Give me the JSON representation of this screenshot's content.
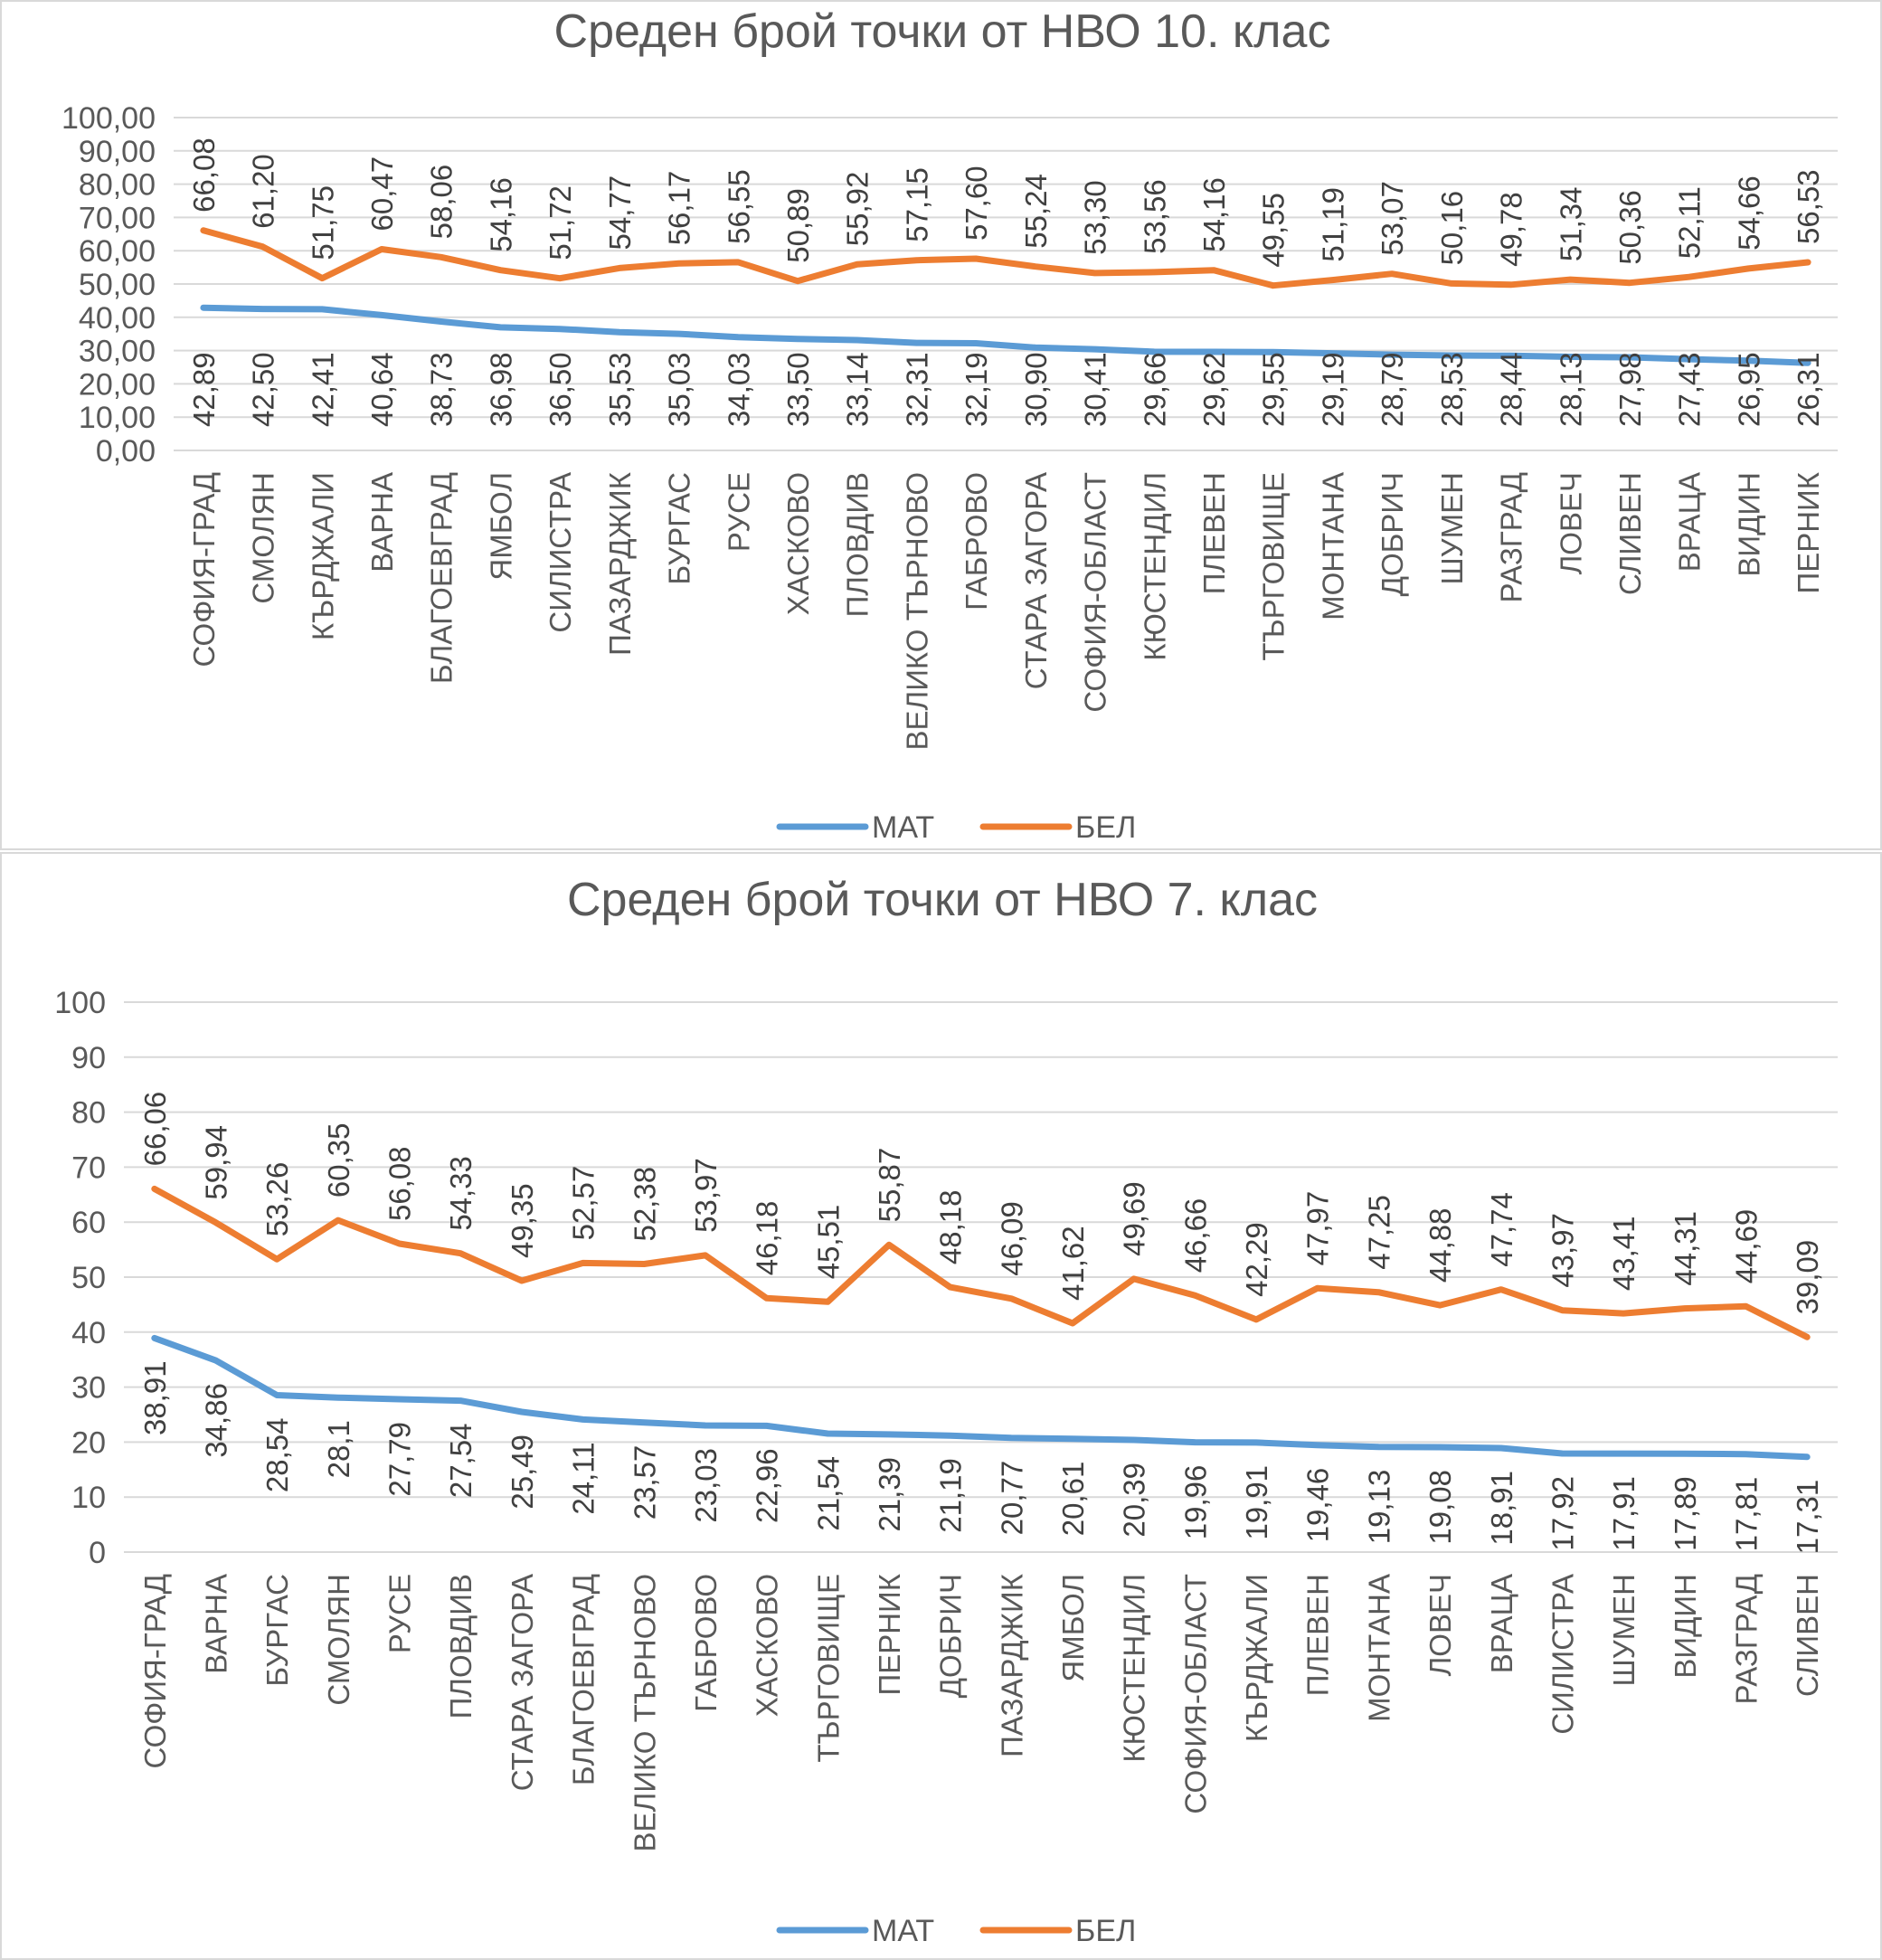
{
  "chart_data": [
    {
      "type": "line",
      "title": "Среден брой точки от НВО 10. клас",
      "categories": [
        "СОФИЯ-ГРАД",
        "СМОЛЯН",
        "КЪРДЖАЛИ",
        "ВАРНА",
        "БЛАГОЕВГРАД",
        "ЯМБОЛ",
        "СИЛИСТРА",
        "ПАЗАРДЖИК",
        "БУРГАС",
        "РУСЕ",
        "ХАСКОВО",
        "ПЛОВДИВ",
        "ВЕЛИКО ТЪРНОВО",
        "ГАБРОВО",
        "СТАРА ЗАГОРА",
        "СОФИЯ-ОБЛАСТ",
        "КЮСТЕНДИЛ",
        "ПЛЕВЕН",
        "ТЪРГОВИЩЕ",
        "МОНТАНА",
        "ДОБРИЧ",
        "ШУМЕН",
        "РАЗГРАД",
        "ЛОВЕЧ",
        "СЛИВЕН",
        "ВРАЦА",
        "ВИДИН",
        "ПЕРНИК"
      ],
      "series": [
        {
          "name": "МАТ",
          "color": "#5b9bd5",
          "values": [
            42.89,
            42.5,
            42.41,
            40.64,
            38.73,
            36.98,
            36.5,
            35.53,
            35.03,
            34.03,
            33.5,
            33.14,
            32.31,
            32.19,
            30.9,
            30.41,
            29.66,
            29.62,
            29.55,
            29.19,
            28.79,
            28.53,
            28.44,
            28.13,
            27.98,
            27.43,
            26.95,
            26.31
          ],
          "labels": [
            "42,89",
            "42,50",
            "42,41",
            "40,64",
            "38,73",
            "36,98",
            "36,50",
            "35,53",
            "35,03",
            "34,03",
            "33,50",
            "33,14",
            "32,31",
            "32,19",
            "30,90",
            "30,41",
            "29,66",
            "29,62",
            "29,55",
            "29,19",
            "28,79",
            "28,53",
            "28,44",
            "28,13",
            "27,98",
            "27,43",
            "26,95",
            "26,31"
          ]
        },
        {
          "name": "БЕЛ",
          "color": "#ed7d31",
          "values": [
            66.08,
            61.2,
            51.75,
            60.47,
            58.06,
            54.16,
            51.72,
            54.77,
            56.17,
            56.55,
            50.89,
            55.92,
            57.15,
            57.6,
            55.24,
            53.3,
            53.56,
            54.16,
            49.55,
            51.19,
            53.07,
            50.16,
            49.78,
            51.34,
            50.36,
            52.11,
            54.66,
            56.53
          ],
          "labels": [
            "66,08",
            "61,20",
            "51,75",
            "60,47",
            "58,06",
            "54,16",
            "51,72",
            "54,77",
            "56,17",
            "56,55",
            "50,89",
            "55,92",
            "57,15",
            "57,60",
            "55,24",
            "53,30",
            "53,56",
            "54,16",
            "49,55",
            "51,19",
            "53,07",
            "50,16",
            "49,78",
            "51,34",
            "50,36",
            "52,11",
            "54,66",
            "56,53"
          ]
        }
      ],
      "ylim": [
        0,
        100
      ],
      "yticks": [
        "0,00",
        "10,00",
        "20,00",
        "30,00",
        "40,00",
        "50,00",
        "60,00",
        "70,00",
        "80,00",
        "90,00",
        "100,00"
      ],
      "grid": true,
      "legend": "bottom"
    },
    {
      "type": "line",
      "title": "Среден брой точки от НВО 7. клас",
      "categories": [
        "СОФИЯ-ГРАД",
        "ВАРНА",
        "БУРГАС",
        "СМОЛЯН",
        "РУСЕ",
        "ПЛОВДИВ",
        "СТАРА ЗАГОРА",
        "БЛАГОЕВГРАД",
        "ВЕЛИКО ТЪРНОВО",
        "ГАБРОВО",
        "ХАСКОВО",
        "ТЪРГОВИЩЕ",
        "ПЕРНИК",
        "ДОБРИЧ",
        "ПАЗАРДЖИК",
        "ЯМБОЛ",
        "КЮСТЕНДИЛ",
        "СОФИЯ-ОБЛАСТ",
        "КЪРДЖАЛИ",
        "ПЛЕВЕН",
        "МОНТАНА",
        "ЛОВЕЧ",
        "ВРАЦА",
        "СИЛИСТРА",
        "ШУМЕН",
        "ВИДИН",
        "РАЗГРАД",
        "СЛИВЕН"
      ],
      "series": [
        {
          "name": "МАТ",
          "color": "#5b9bd5",
          "values": [
            38.91,
            34.86,
            28.54,
            28.1,
            27.79,
            27.54,
            25.49,
            24.11,
            23.57,
            23.03,
            22.96,
            21.54,
            21.39,
            21.19,
            20.77,
            20.61,
            20.39,
            19.96,
            19.91,
            19.46,
            19.13,
            19.08,
            18.91,
            17.92,
            17.91,
            17.89,
            17.81,
            17.31
          ],
          "labels": [
            "38,91",
            "34,86",
            "28,54",
            "28,1",
            "27,79",
            "27,54",
            "25,49",
            "24,11",
            "23,57",
            "23,03",
            "22,96",
            "21,54",
            "21,39",
            "21,19",
            "20,77",
            "20,61",
            "20,39",
            "19,96",
            "19,91",
            "19,46",
            "19,13",
            "19,08",
            "18,91",
            "17,92",
            "17,91",
            "17,89",
            "17,81",
            "17,31"
          ]
        },
        {
          "name": "БЕЛ",
          "color": "#ed7d31",
          "values": [
            66.06,
            59.94,
            53.26,
            60.35,
            56.08,
            54.33,
            49.35,
            52.57,
            52.38,
            53.97,
            46.18,
            45.51,
            55.87,
            48.18,
            46.09,
            41.62,
            49.69,
            46.66,
            42.29,
            47.97,
            47.25,
            44.88,
            47.74,
            43.97,
            43.41,
            44.31,
            44.69,
            39.09
          ],
          "labels": [
            "66,06",
            "59,94",
            "53,26",
            "60,35",
            "56,08",
            "54,33",
            "49,35",
            "52,57",
            "52,38",
            "53,97",
            "46,18",
            "45,51",
            "55,87",
            "48,18",
            "46,09",
            "41,62",
            "49,69",
            "46,66",
            "42,29",
            "47,97",
            "47,25",
            "44,88",
            "47,74",
            "43,97",
            "43,41",
            "44,31",
            "44,69",
            "39,09"
          ]
        }
      ],
      "ylim": [
        0,
        100
      ],
      "yticks": [
        "0",
        "10",
        "20",
        "30",
        "40",
        "50",
        "60",
        "70",
        "80",
        "90",
        "100"
      ],
      "grid": true,
      "legend": "bottom"
    }
  ]
}
